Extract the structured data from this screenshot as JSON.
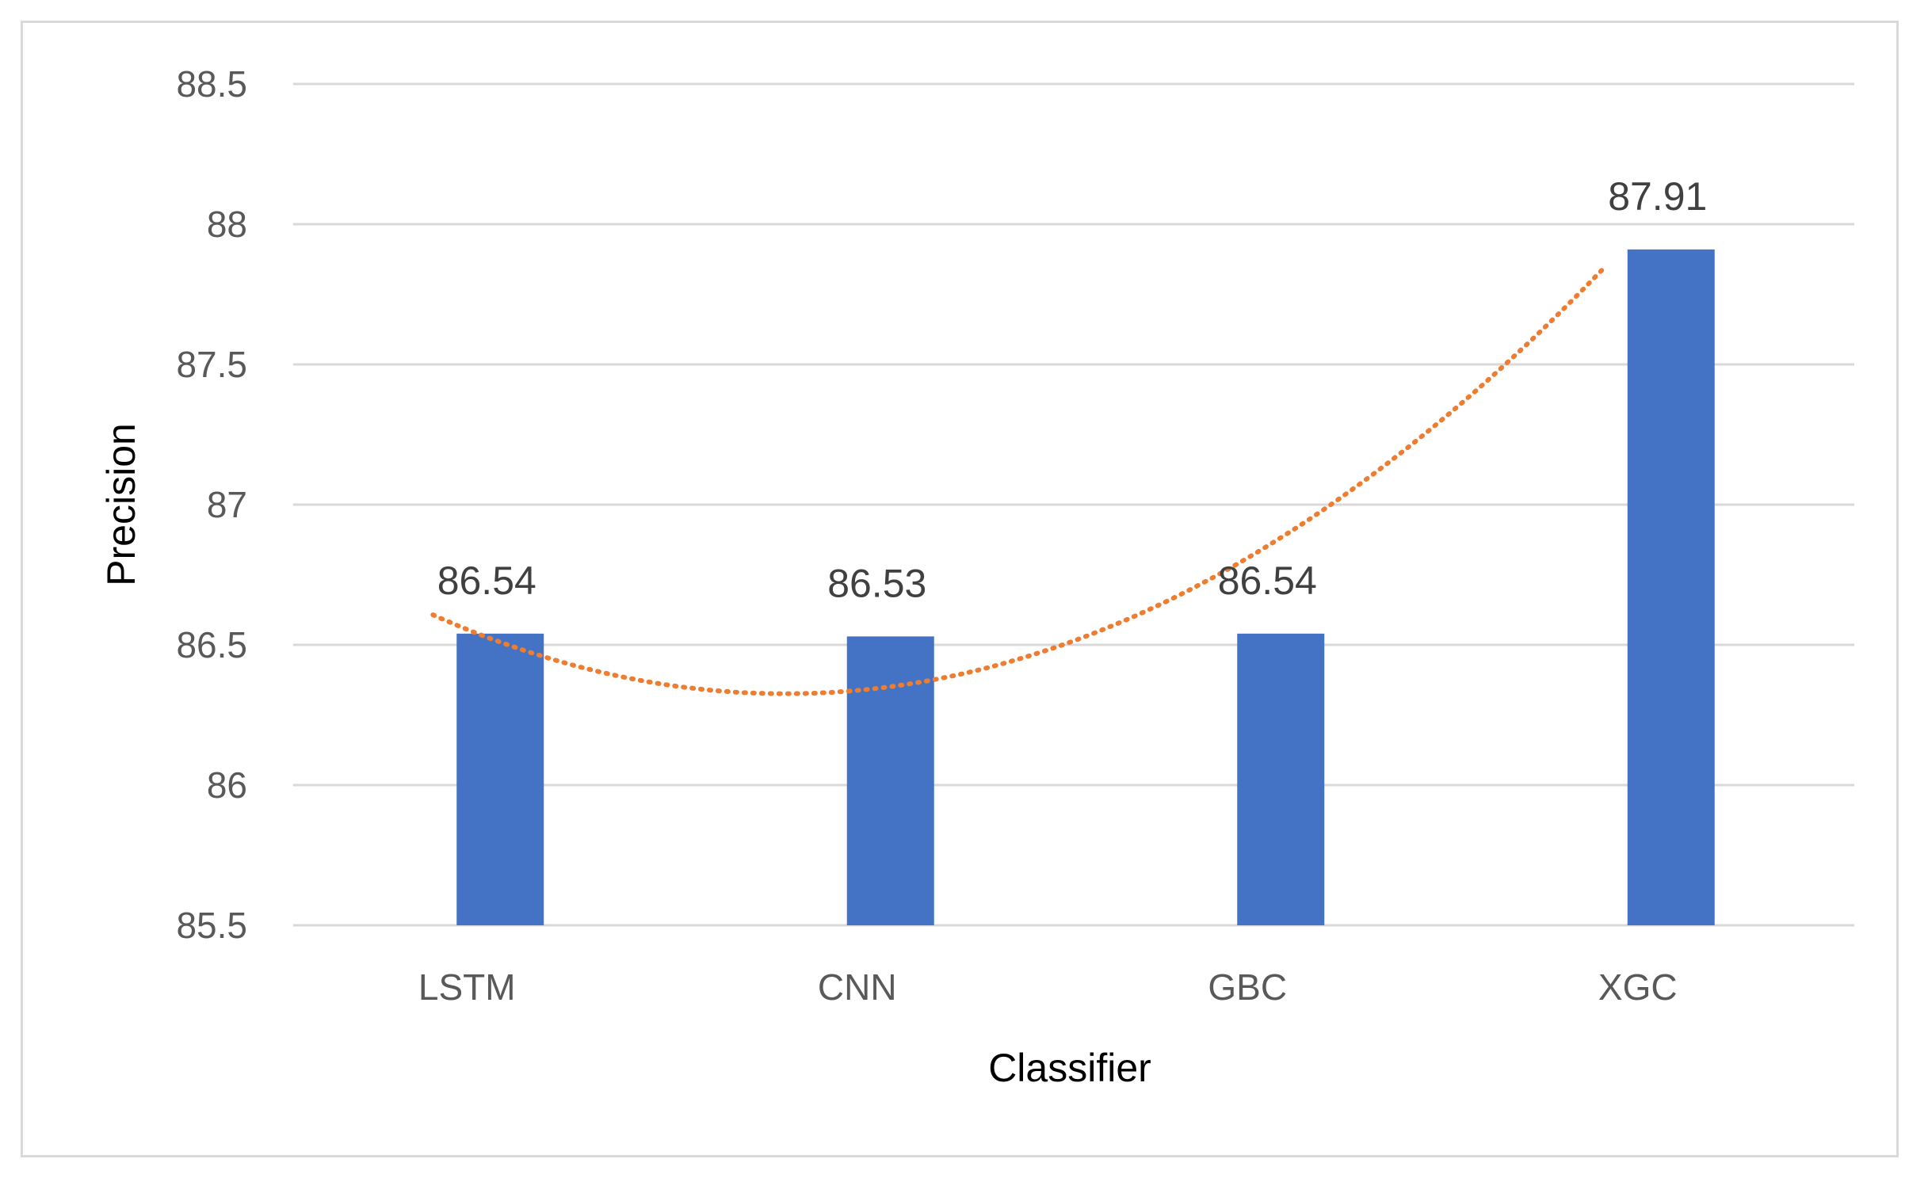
{
  "chart_data": {
    "type": "bar",
    "title": "",
    "xlabel": "Classifier",
    "ylabel": "Precision",
    "categories": [
      "LSTM",
      "CNN",
      "GBC",
      "XGC"
    ],
    "values": [
      86.54,
      86.53,
      86.54,
      87.91
    ],
    "data_labels": [
      "86.54",
      "86.53",
      "86.54",
      "87.91"
    ],
    "ylim": [
      85.5,
      88.5
    ],
    "yticks": [
      85.5,
      86,
      86.5,
      87,
      87.5,
      88,
      88.5
    ],
    "ytick_labels": [
      "85.5",
      "86",
      "86.5",
      "87",
      "87.5",
      "88",
      "88.5"
    ],
    "grid": true,
    "legend": "none",
    "trendline": {
      "type": "polynomial",
      "style": "dotted",
      "color": "#ED7D31"
    },
    "colors": {
      "bar": "#4472C4",
      "grid": "#d9d9d9"
    }
  }
}
